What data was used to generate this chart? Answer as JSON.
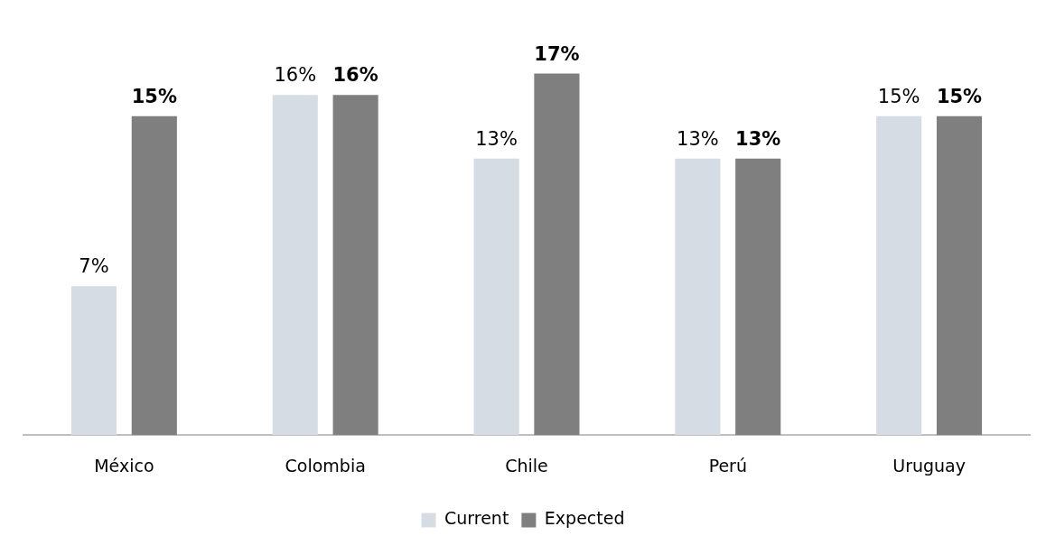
{
  "chart_data": {
    "type": "bar",
    "categories": [
      "México",
      "Colombia",
      "Chile",
      "Perú",
      "Uruguay"
    ],
    "series": [
      {
        "name": "Current",
        "color": "#d6dce4",
        "values": [
          7,
          16,
          13,
          13,
          15
        ],
        "value_labels": [
          "7%",
          "16%",
          "13%",
          "13%",
          "15%"
        ]
      },
      {
        "name": "Expected",
        "color": "#7f7f7f",
        "values": [
          15,
          16,
          17,
          13,
          15
        ],
        "value_labels": [
          "15%",
          "16%",
          "17%",
          "13%",
          "15%"
        ]
      }
    ],
    "relative": false,
    "grid": false,
    "legend": "bottom"
  }
}
